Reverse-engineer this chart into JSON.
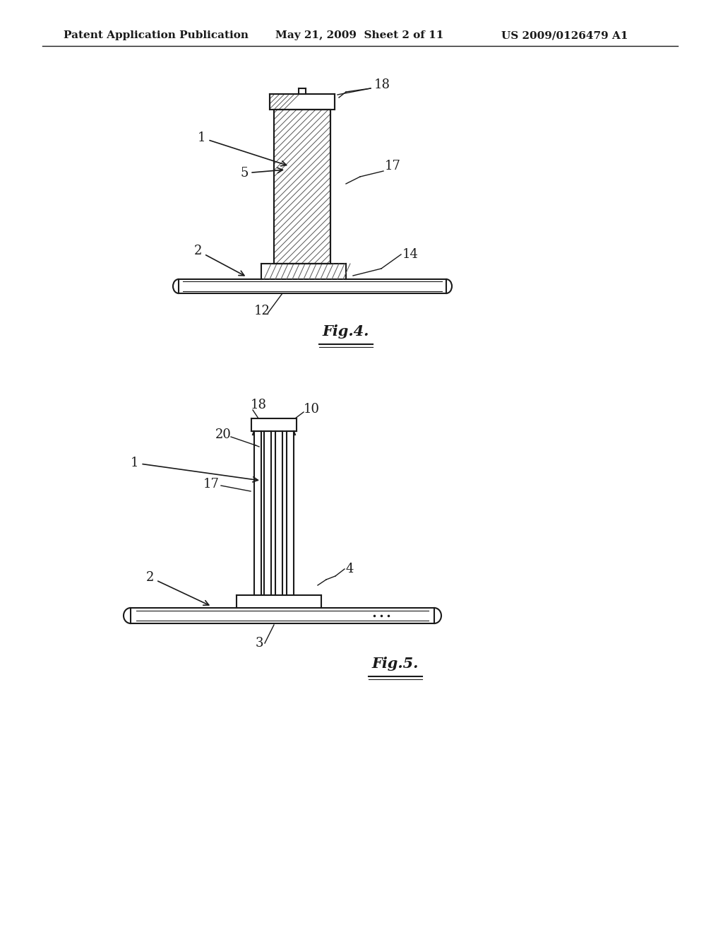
{
  "bg_color": "#ffffff",
  "header_text": "Patent Application Publication",
  "header_date": "May 21, 2009  Sheet 2 of 11",
  "header_patent": "US 2009/0126479 A1",
  "fig4_label": "Fig.4.",
  "fig5_label": "Fig.5.",
  "line_color": "#1a1a1a",
  "hatch_color": "#333333"
}
